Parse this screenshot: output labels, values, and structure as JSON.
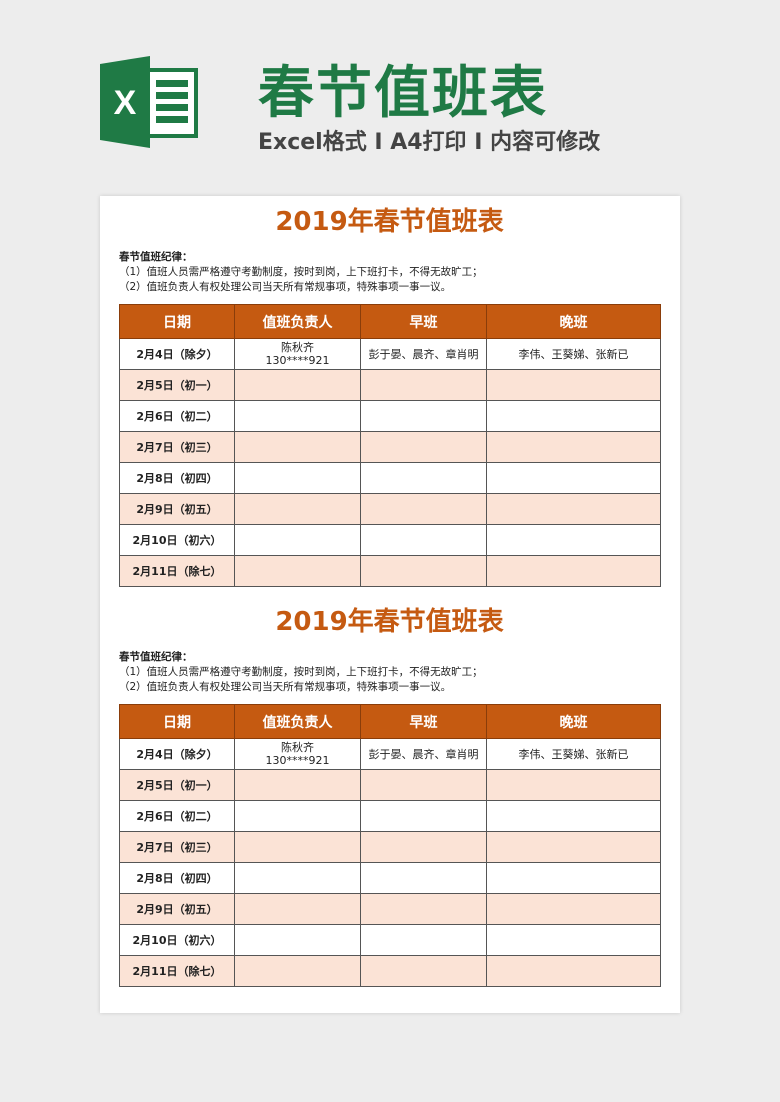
{
  "header": {
    "title": "春节值班表",
    "subtitle": "Excel格式 I A4打印 I 内容可修改",
    "logo_letter": "X",
    "brand_color": "#1f7a45"
  },
  "sheets": [
    {
      "title": "2019年春节值班表",
      "rules_title": "春节值班纪律：",
      "rules": [
        "（1）值班人员需严格遵守考勤制度，按时到岗，上下班打卡，不得无故旷工；",
        "（2）值班负责人有权处理公司当天所有常规事项，特殊事项一事一议。"
      ]
    },
    {
      "title": "2019年春节值班表",
      "rules_title": "春节值班纪律：",
      "rules": [
        "（1）值班人员需严格遵守考勤制度，按时到岗，上下班打卡，不得无故旷工；",
        "（2）值班负责人有权处理公司当天所有常规事项，特殊事项一事一议。"
      ]
    }
  ],
  "table": {
    "columns": [
      "日期",
      "值班负责人",
      "早班",
      "晚班"
    ],
    "rows": [
      {
        "date": "2月4日（除夕）",
        "leader": "陈秋齐",
        "phone": "130****921",
        "morning": "彭于晏、晨齐、章肖明",
        "evening": "李伟、王葵娣、张新已"
      },
      {
        "date": "2月5日（初一）",
        "leader": "",
        "phone": "",
        "morning": "",
        "evening": ""
      },
      {
        "date": "2月6日（初二）",
        "leader": "",
        "phone": "",
        "morning": "",
        "evening": ""
      },
      {
        "date": "2月7日（初三）",
        "leader": "",
        "phone": "",
        "morning": "",
        "evening": ""
      },
      {
        "date": "2月8日（初四）",
        "leader": "",
        "phone": "",
        "morning": "",
        "evening": ""
      },
      {
        "date": "2月9日（初五）",
        "leader": "",
        "phone": "",
        "morning": "",
        "evening": ""
      },
      {
        "date": "2月10日（初六）",
        "leader": "",
        "phone": "",
        "morning": "",
        "evening": ""
      },
      {
        "date": "2月11日（除七）",
        "leader": "",
        "phone": "",
        "morning": "",
        "evening": ""
      }
    ],
    "header_color": "#c55a11",
    "alt_row_color": "#fbe3d6"
  }
}
